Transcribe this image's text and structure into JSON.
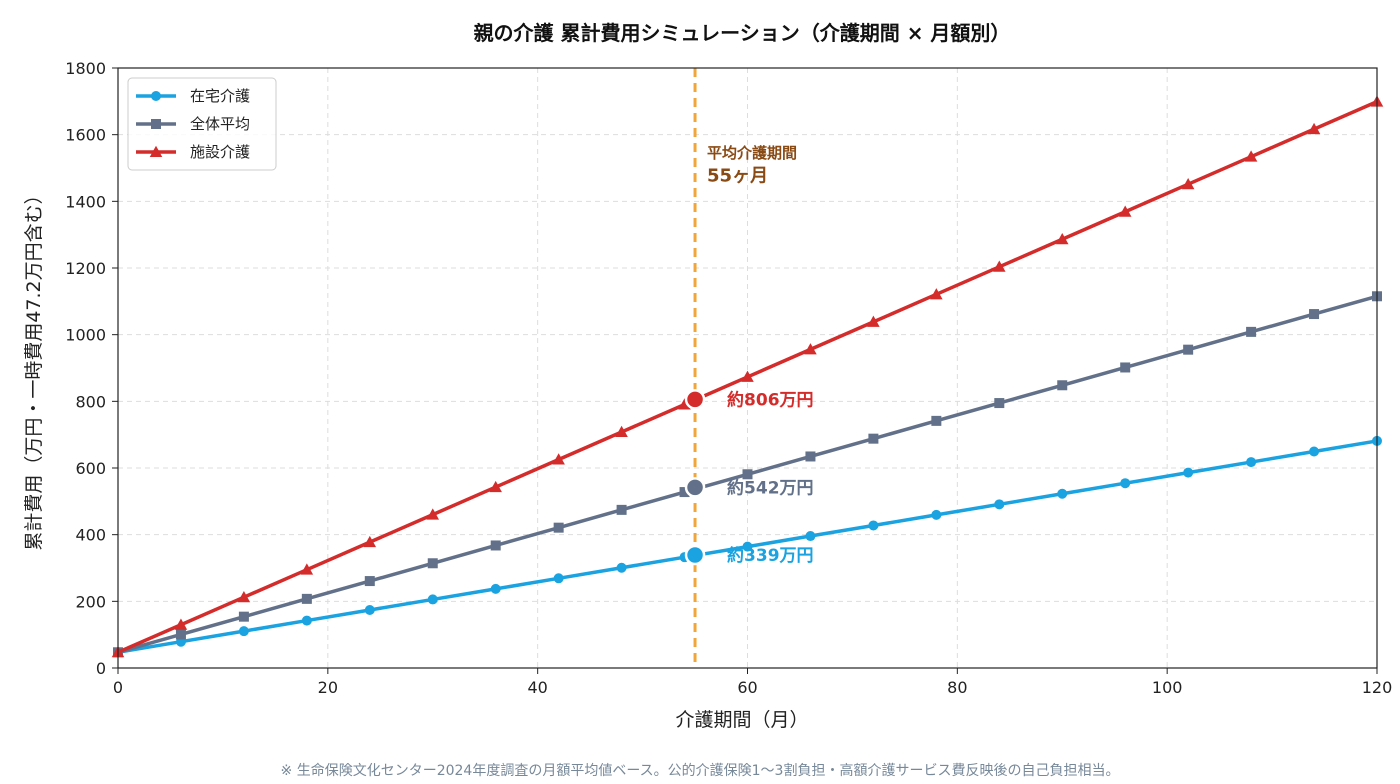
{
  "chart_data": {
    "type": "line",
    "title": "親の介護 累計費用シミュレーション（介護期間 × 月額別）",
    "xlabel": "介護期間（月）",
    "ylabel": "累計費用（万円・一時費用47.2万円含む）",
    "xlim": [
      0,
      120
    ],
    "ylim": [
      0,
      1800
    ],
    "x_ticks": [
      "0",
      "20",
      "40",
      "60",
      "80",
      "100",
      "120"
    ],
    "y_ticks": [
      "0",
      "200",
      "400",
      "600",
      "800",
      "1000",
      "1200",
      "1400",
      "1600",
      "1800"
    ],
    "grid": true,
    "legend_position": "top-left",
    "x": [
      0,
      6,
      12,
      18,
      24,
      30,
      36,
      42,
      48,
      54,
      60,
      66,
      72,
      78,
      84,
      90,
      96,
      102,
      108,
      114,
      120
    ],
    "series": [
      {
        "name": "在宅介護",
        "color": "#1aa3e0",
        "marker": "circle",
        "values": [
          47.2,
          78.9,
          110.6,
          142.3,
          174.0,
          205.7,
          237.4,
          269.1,
          300.8,
          332.5,
          364.2,
          395.9,
          427.6,
          459.3,
          491.0,
          522.7,
          554.4,
          586.1,
          617.8,
          649.5,
          681.2
        ]
      },
      {
        "name": "全体平均",
        "color": "#627189",
        "marker": "square",
        "values": [
          47.2,
          100.6,
          154.0,
          207.4,
          260.8,
          314.2,
          367.6,
          421.0,
          474.4,
          527.8,
          581.2,
          634.6,
          688.0,
          741.4,
          794.8,
          848.2,
          901.6,
          955.0,
          1008.4,
          1061.8,
          1115.2
        ]
      },
      {
        "name": "施設介護",
        "color": "#d42b2b",
        "marker": "triangle",
        "values": [
          47.2,
          129.8,
          212.4,
          295.0,
          377.6,
          460.2,
          542.8,
          625.4,
          708.0,
          790.6,
          873.2,
          955.8,
          1038.4,
          1121.0,
          1203.6,
          1286.2,
          1368.8,
          1451.4,
          1534.0,
          1616.6,
          1699.2
        ]
      }
    ],
    "vline": {
      "x": 55,
      "color": "#f0a63a",
      "label_line1": "平均介護期間",
      "label_line2": "55ヶ月",
      "label_color": "#8a4a14"
    },
    "highlights": [
      {
        "series": "施設介護",
        "x": 55,
        "y": 806,
        "label": "約806万円",
        "color": "#d42b2b"
      },
      {
        "series": "全体平均",
        "x": 55,
        "y": 542,
        "label": "約542万円",
        "color": "#627189"
      },
      {
        "series": "在宅介護",
        "x": 55,
        "y": 339,
        "label": "約339万円",
        "color": "#1aa3e0"
      }
    ]
  },
  "footnote": "※ 生命保険文化センター2024年度調査の月額平均値ベース。公的介護保険1〜3割負担・高額介護サービス費反映後の自己負担相当。"
}
